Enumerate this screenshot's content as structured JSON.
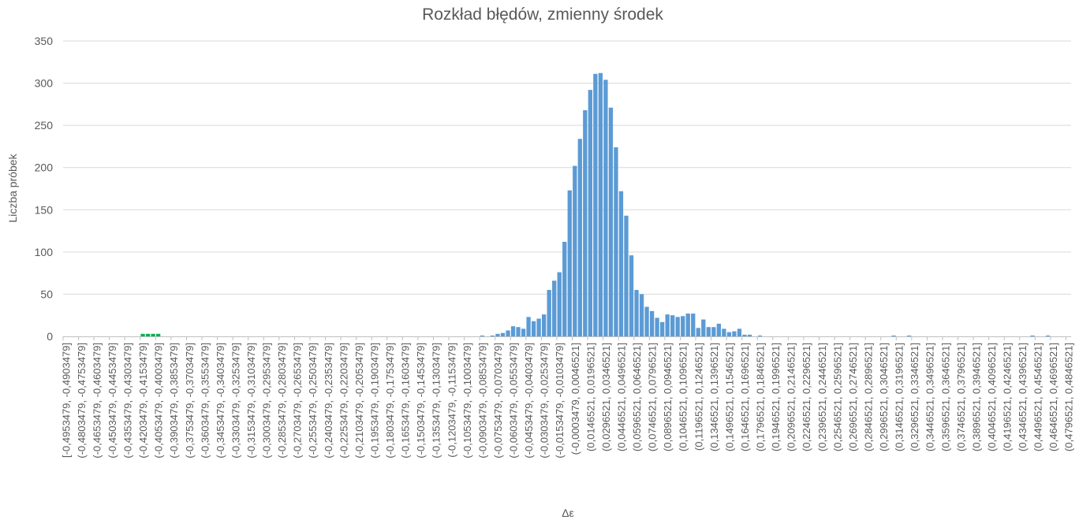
{
  "chart_data": {
    "type": "bar",
    "title": "Rozkład błędów, zmienny środek",
    "xlabel": "Δε",
    "ylabel": "Liczba próbek",
    "ylim": [
      0,
      350
    ],
    "y_ticks": [
      0,
      50,
      100,
      150,
      200,
      250,
      300,
      350
    ],
    "grid": "horizontal",
    "bin_start": -0.4953479,
    "bin_width": 0.005,
    "bin_count": 196,
    "tick_label_every": 3,
    "colors": {
      "bar": "#5b9bd5",
      "highlight": "#00b050",
      "grid": "#d9d9d9",
      "axis": "#bfbfbf",
      "text": "#595959"
    },
    "categories": [
      "[-0,4953479, -0,4903479]",
      "(-0,4803479, -0,4753479]",
      "(-0,4653479, -0,4603479]",
      "(-0,4503479, -0,4453479]",
      "(-0,4353479, -0,4303479]",
      "(-0,4203479, -0,4153479]",
      "(-0,4053479, -0,4003479]",
      "(-0,3903479, -0,3853479]",
      "(-0,3753479, -0,3703479]",
      "(-0,3603479, -0,3553479]",
      "(-0,3453479, -0,3403479]",
      "(-0,3303479, -0,3253479]",
      "(-0,3153479, -0,3103479]",
      "(-0,3003479, -0,2953479]",
      "(-0,2853479, -0,2803479]",
      "(-0,2703479, -0,2653479]",
      "(-0,2553479, -0,2503479]",
      "(-0,2403479, -0,2353479]",
      "(-0,2253479, -0,2203479]",
      "(-0,2103479, -0,2053479]",
      "(-0,1953479, -0,1903479]",
      "(-0,1803479, -0,1753479]",
      "(-0,1653479, -0,1603479]",
      "(-0,1503479, -0,1453479]",
      "(-0,1353479, -0,1303479]",
      "(-0,1203479, -0,1153479]",
      "(-0,1053479, -0,1003479]",
      "(-0,0903479, -0,0853479]",
      "(-0,0753479, -0,0703479]",
      "(-0,0603479, -0,0553479]",
      "(-0,0453479, -0,0403479]",
      "(-0,0303479, -0,0253479]",
      "(-0,0153479, -0,0103479]",
      "(-0,0003479, 0,0046521]",
      "(0,0146521, 0,0196521]",
      "(0,0296521, 0,0346521]",
      "(0,0446521, 0,0496521]",
      "(0,0596521, 0,0646521]",
      "(0,0746521, 0,0796521]",
      "(0,0896521, 0,0946521]",
      "(0,1046521, 0,1096521]",
      "(0,1196521, 0,1246521]",
      "(0,1346521, 0,1396521]",
      "(0,1496521, 0,1546521]",
      "(0,1646521, 0,1696521]",
      "(0,1796521, 0,1846521]",
      "(0,1946521, 0,1996521]",
      "(0,2096521, 0,2146521]",
      "(0,2246521, 0,2296521]",
      "(0,2396521, 0,2446521]",
      "(0,2546521, 0,2596521]",
      "(0,2696521, 0,2746521]",
      "(0,2846521, 0,2896521]",
      "(0,2996521, 0,3046521]",
      "(0,3146521, 0,3196521]",
      "(0,3296521, 0,3346521]",
      "(0,3446521, 0,3496521]",
      "(0,3596521, 0,3646521]",
      "(0,3746521, 0,3796521]",
      "(0,3896521, 0,3946521]",
      "(0,4046521, 0,4096521]",
      "(0,4196521, 0,4246521]",
      "(0,4346521, 0,4396521]",
      "(0,4496521, 0,4546521]",
      "(0,4646521, 0,4696521]",
      "(0,4796521, 0,4846521]"
    ],
    "bars": [
      {
        "bin": 15,
        "value": 3,
        "color": "highlight"
      },
      {
        "bin": 16,
        "value": 3,
        "color": "highlight"
      },
      {
        "bin": 17,
        "value": 3,
        "color": "highlight"
      },
      {
        "bin": 18,
        "value": 3,
        "color": "highlight"
      },
      {
        "bin": 81,
        "value": 1
      },
      {
        "bin": 83,
        "value": 1
      },
      {
        "bin": 84,
        "value": 3
      },
      {
        "bin": 85,
        "value": 4
      },
      {
        "bin": 86,
        "value": 7
      },
      {
        "bin": 87,
        "value": 12
      },
      {
        "bin": 88,
        "value": 11
      },
      {
        "bin": 89,
        "value": 9
      },
      {
        "bin": 90,
        "value": 23
      },
      {
        "bin": 91,
        "value": 18
      },
      {
        "bin": 92,
        "value": 21
      },
      {
        "bin": 93,
        "value": 26
      },
      {
        "bin": 94,
        "value": 55
      },
      {
        "bin": 95,
        "value": 66
      },
      {
        "bin": 96,
        "value": 76
      },
      {
        "bin": 97,
        "value": 112
      },
      {
        "bin": 98,
        "value": 173
      },
      {
        "bin": 99,
        "value": 202
      },
      {
        "bin": 100,
        "value": 234
      },
      {
        "bin": 101,
        "value": 268
      },
      {
        "bin": 102,
        "value": 292
      },
      {
        "bin": 103,
        "value": 311
      },
      {
        "bin": 104,
        "value": 312
      },
      {
        "bin": 105,
        "value": 304
      },
      {
        "bin": 106,
        "value": 271
      },
      {
        "bin": 107,
        "value": 224
      },
      {
        "bin": 108,
        "value": 172
      },
      {
        "bin": 109,
        "value": 143
      },
      {
        "bin": 110,
        "value": 96
      },
      {
        "bin": 111,
        "value": 55
      },
      {
        "bin": 112,
        "value": 50
      },
      {
        "bin": 113,
        "value": 35
      },
      {
        "bin": 114,
        "value": 30
      },
      {
        "bin": 115,
        "value": 22
      },
      {
        "bin": 116,
        "value": 17
      },
      {
        "bin": 117,
        "value": 26
      },
      {
        "bin": 118,
        "value": 25
      },
      {
        "bin": 119,
        "value": 23
      },
      {
        "bin": 120,
        "value": 24
      },
      {
        "bin": 121,
        "value": 27
      },
      {
        "bin": 122,
        "value": 27
      },
      {
        "bin": 123,
        "value": 10
      },
      {
        "bin": 124,
        "value": 20
      },
      {
        "bin": 125,
        "value": 11
      },
      {
        "bin": 126,
        "value": 11
      },
      {
        "bin": 127,
        "value": 15
      },
      {
        "bin": 128,
        "value": 9
      },
      {
        "bin": 129,
        "value": 5
      },
      {
        "bin": 130,
        "value": 6
      },
      {
        "bin": 131,
        "value": 9
      },
      {
        "bin": 132,
        "value": 2
      },
      {
        "bin": 133,
        "value": 2
      },
      {
        "bin": 135,
        "value": 1
      },
      {
        "bin": 161,
        "value": 1
      },
      {
        "bin": 164,
        "value": 1
      },
      {
        "bin": 188,
        "value": 1
      },
      {
        "bin": 191,
        "value": 1
      }
    ]
  }
}
